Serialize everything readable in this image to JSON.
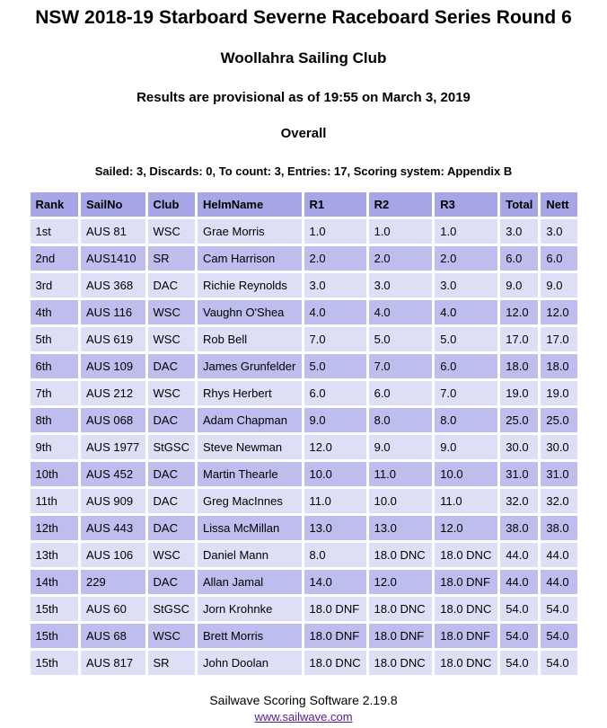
{
  "page": {
    "title": "NSW 2018-19 Starboard Severne Raceboard Series Round 6",
    "venue": "Woollahra Sailing Club",
    "provisional_note": "Results are provisional as of 19:55 on March 3, 2019",
    "section": "Overall",
    "series_summary": "Sailed: 3, Discards: 0, To count: 3, Entries: 17, Scoring system: Appendix B"
  },
  "table": {
    "columns": [
      "Rank",
      "SailNo",
      "Club",
      "HelmName",
      "R1",
      "R2",
      "R3",
      "Total",
      "Nett"
    ],
    "column_keys": [
      "rank",
      "sailno",
      "club",
      "helmname",
      "r1",
      "r2",
      "r3",
      "total",
      "nett"
    ],
    "rows": [
      [
        "1st",
        "AUS 81",
        "WSC",
        "Grae Morris",
        "1.0",
        "1.0",
        "1.0",
        "3.0",
        "3.0"
      ],
      [
        "2nd",
        "AUS1410",
        "SR",
        "Cam Harrison",
        "2.0",
        "2.0",
        "2.0",
        "6.0",
        "6.0"
      ],
      [
        "3rd",
        "AUS 368",
        "DAC",
        "Richie Reynolds",
        "3.0",
        "3.0",
        "3.0",
        "9.0",
        "9.0"
      ],
      [
        "4th",
        "AUS 116",
        "WSC",
        "Vaughn O'Shea",
        "4.0",
        "4.0",
        "4.0",
        "12.0",
        "12.0"
      ],
      [
        "5th",
        "AUS 619",
        "WSC",
        "Rob Bell",
        "7.0",
        "5.0",
        "5.0",
        "17.0",
        "17.0"
      ],
      [
        "6th",
        "AUS 109",
        "DAC",
        "James Grunfelder",
        "5.0",
        "7.0",
        "6.0",
        "18.0",
        "18.0"
      ],
      [
        "7th",
        "AUS 212",
        "WSC",
        "Rhys Herbert",
        "6.0",
        "6.0",
        "7.0",
        "19.0",
        "19.0"
      ],
      [
        "8th",
        "AUS 068",
        "DAC",
        "Adam Chapman",
        "9.0",
        "8.0",
        "8.0",
        "25.0",
        "25.0"
      ],
      [
        "9th",
        "AUS 1977",
        "StGSC",
        "Steve Newman",
        "12.0",
        "9.0",
        "9.0",
        "30.0",
        "30.0"
      ],
      [
        "10th",
        "AUS 452",
        "DAC",
        "Martin Thearle",
        "10.0",
        "11.0",
        "10.0",
        "31.0",
        "31.0"
      ],
      [
        "11th",
        "AUS 909",
        "DAC",
        "Greg MacInnes",
        "11.0",
        "10.0",
        "11.0",
        "32.0",
        "32.0"
      ],
      [
        "12th",
        "AUS 443",
        "DAC",
        "Lissa McMillan",
        "13.0",
        "13.0",
        "12.0",
        "38.0",
        "38.0"
      ],
      [
        "13th",
        "AUS 106",
        "WSC",
        "Daniel Mann",
        "8.0",
        "18.0 DNC",
        "18.0 DNC",
        "44.0",
        "44.0"
      ],
      [
        "14th",
        "229",
        "DAC",
        "Allan Jamal",
        "14.0",
        "12.0",
        "18.0 DNF",
        "44.0",
        "44.0"
      ],
      [
        "15th",
        "AUS 60",
        "StGSC",
        "Jorn Krohnke",
        "18.0 DNF",
        "18.0 DNC",
        "18.0 DNC",
        "54.0",
        "54.0"
      ],
      [
        "15th",
        "AUS 68",
        "WSC",
        "Brett Morris",
        "18.0 DNF",
        "18.0 DNF",
        "18.0 DNF",
        "54.0",
        "54.0"
      ],
      [
        "15th",
        "AUS 817",
        "SR",
        "John Doolan",
        "18.0 DNC",
        "18.0 DNC",
        "18.0 DNC",
        "54.0",
        "54.0"
      ]
    ]
  },
  "footer": {
    "software": "Sailwave Scoring Software 2.19.8",
    "link_text": "www.sailwave.com"
  },
  "colors": {
    "header_bg": "#a6a6e6",
    "row_even_bg": "#bdbdee",
    "row_odd_bg": "#dedef7",
    "link": "#551a8b"
  }
}
